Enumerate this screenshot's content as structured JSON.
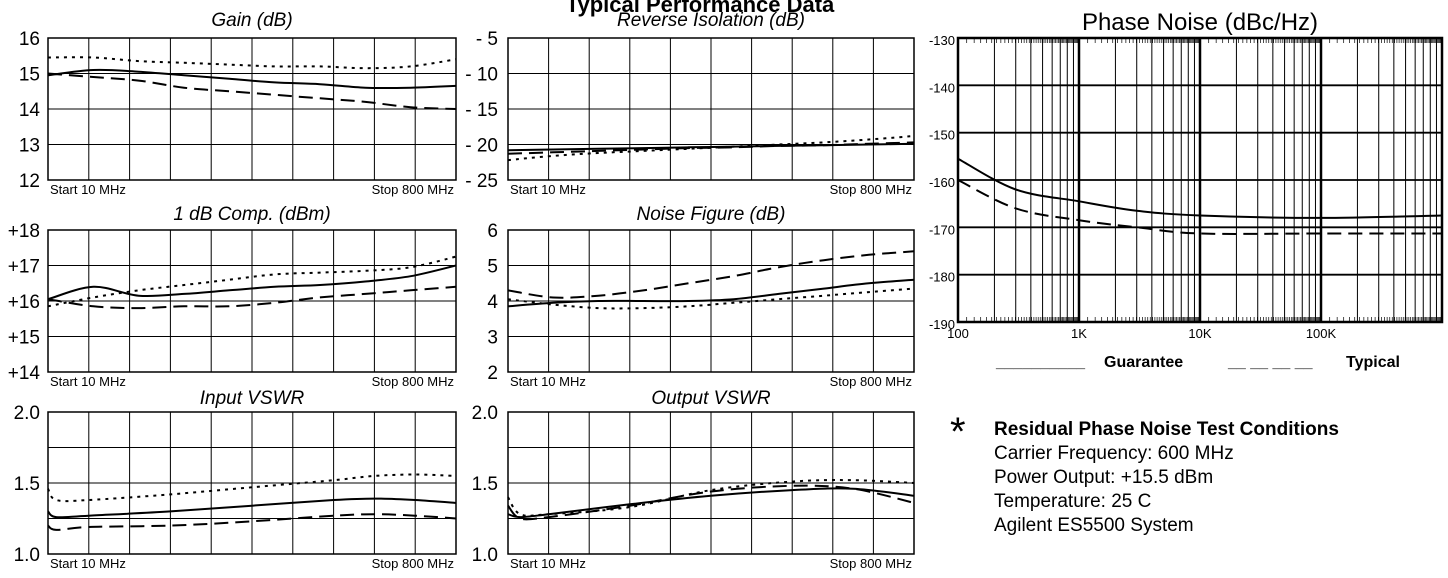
{
  "page_title": "Typical Performance Data",
  "chart_data": [
    {
      "id": "gain",
      "type": "line",
      "title": "Gain (dB)",
      "title_italic": true,
      "ylim": [
        12,
        16
      ],
      "yticks": [
        16,
        15,
        14,
        13,
        12
      ],
      "ytick_prefix": "",
      "ytick_side": "left",
      "start_label": "Start  10  MHz",
      "stop_label": "Stop  800 MHz",
      "series": [
        {
          "style": "solid",
          "values": [
            14.95,
            15.1,
            15.05,
            14.95,
            14.85,
            14.75,
            14.7,
            14.6,
            14.6,
            14.65
          ]
        },
        {
          "style": "dotted",
          "values": [
            15.45,
            15.45,
            15.35,
            15.3,
            15.25,
            15.2,
            15.2,
            15.15,
            15.2,
            15.4
          ]
        },
        {
          "style": "dashed",
          "values": [
            15.0,
            14.9,
            14.8,
            14.6,
            14.5,
            14.4,
            14.3,
            14.2,
            14.05,
            14.0
          ]
        }
      ]
    },
    {
      "id": "reverse-isolation",
      "type": "line",
      "title": "Reverse Isolation (dB)",
      "title_italic": true,
      "ylim": [
        -25,
        -5
      ],
      "yticks": [
        "- 5",
        "- 10",
        "- 15",
        "- 20",
        "- 25"
      ],
      "ytick_side": "left",
      "start_label": "Start  10  MHz",
      "stop_label": "Stop  800 MHz",
      "series": [
        {
          "style": "solid",
          "values": [
            -20.8,
            -20.7,
            -20.6,
            -20.5,
            -20.4,
            -20.3,
            -20.2,
            -20.1,
            -20.0,
            -19.9
          ]
        },
        {
          "style": "dotted",
          "values": [
            -22.2,
            -21.6,
            -21.2,
            -20.9,
            -20.6,
            -20.3,
            -20.0,
            -19.7,
            -19.3,
            -18.8
          ]
        },
        {
          "style": "dashed",
          "values": [
            -21.3,
            -21.1,
            -20.9,
            -20.7,
            -20.5,
            -20.4,
            -20.2,
            -20.1,
            -19.9,
            -19.7
          ]
        }
      ]
    },
    {
      "id": "phase-noise",
      "type": "line",
      "title": "Phase Noise (dBc/Hz)",
      "title_italic": false,
      "ylim": [
        -190,
        -130
      ],
      "yticks": [
        -130,
        -140,
        -150,
        -160,
        -170,
        -180,
        -190
      ],
      "ytick_side": "left",
      "x_scale": "log",
      "xlim": [
        100,
        1000000
      ],
      "xticks": [
        "100",
        "1K",
        "10K",
        "100K"
      ],
      "series": [
        {
          "name": "Guarantee",
          "style": "solid",
          "x": [
            100,
            300,
            1000,
            3000,
            10000,
            100000,
            1000000
          ],
          "y": [
            -155.5,
            -162,
            -164.5,
            -166.5,
            -167.5,
            -168,
            -167.5
          ]
        },
        {
          "name": "Typical",
          "style": "dashed",
          "x": [
            100,
            300,
            1000,
            3000,
            10000,
            100000,
            1000000
          ],
          "y": [
            -160,
            -166,
            -168.5,
            -170,
            -171.3,
            -171.3,
            -171.3
          ]
        }
      ]
    },
    {
      "id": "comp-1db",
      "type": "line",
      "title": "1 dB Comp. (dBm)",
      "title_italic": true,
      "ylim": [
        14,
        18
      ],
      "yticks": [
        "+18",
        "+17",
        "+16",
        "+15",
        "+14"
      ],
      "ytick_side": "left",
      "start_label": "Start  10  MHz",
      "stop_label": "Stop  800 MHz",
      "series": [
        {
          "style": "solid",
          "values": [
            16.05,
            16.4,
            16.15,
            16.2,
            16.3,
            16.4,
            16.45,
            16.55,
            16.7,
            17.0
          ]
        },
        {
          "style": "dotted",
          "values": [
            15.85,
            16.1,
            16.3,
            16.45,
            16.6,
            16.75,
            16.8,
            16.85,
            16.95,
            17.25
          ]
        },
        {
          "style": "dashed",
          "values": [
            16.05,
            15.85,
            15.8,
            15.85,
            15.85,
            15.95,
            16.1,
            16.2,
            16.3,
            16.4
          ]
        }
      ]
    },
    {
      "id": "noise-figure",
      "type": "line",
      "title": "Noise Figure (dB)",
      "title_italic": true,
      "ylim": [
        2,
        6
      ],
      "yticks": [
        6,
        5,
        4,
        3,
        2
      ],
      "ytick_side": "left",
      "start_label": "Start  10  MHz",
      "stop_label": "Stop  800 MHz",
      "series": [
        {
          "style": "solid",
          "values": [
            3.85,
            3.95,
            4.0,
            4.0,
            4.0,
            4.05,
            4.2,
            4.35,
            4.5,
            4.6
          ]
        },
        {
          "style": "dotted",
          "values": [
            4.05,
            3.9,
            3.8,
            3.8,
            3.85,
            3.95,
            4.05,
            4.15,
            4.25,
            4.35
          ]
        },
        {
          "style": "dashed",
          "values": [
            4.3,
            4.1,
            4.15,
            4.3,
            4.5,
            4.7,
            4.95,
            5.15,
            5.3,
            5.4
          ]
        }
      ]
    },
    {
      "id": "input-vswr",
      "type": "line",
      "title": "Input VSWR",
      "title_italic": true,
      "ylim": [
        1.0,
        2.0
      ],
      "yticks": [
        "2.0",
        "1.5",
        "1.0"
      ],
      "ygrid_steps": 4,
      "ytick_side": "left",
      "start_label": "Start  10  MHz",
      "stop_label": "Stop  800 MHz",
      "series": [
        {
          "style": "solid",
          "x": [
            0,
            0.02,
            0.1,
            0.3,
            0.5,
            0.7,
            0.8,
            0.9,
            1.0
          ],
          "values": [
            1.3,
            1.26,
            1.27,
            1.3,
            1.34,
            1.38,
            1.39,
            1.38,
            1.36
          ]
        },
        {
          "style": "dotted",
          "x": [
            0,
            0.02,
            0.1,
            0.3,
            0.5,
            0.7,
            0.8,
            0.9,
            1.0
          ],
          "values": [
            1.46,
            1.38,
            1.38,
            1.42,
            1.47,
            1.52,
            1.55,
            1.56,
            1.55
          ]
        },
        {
          "style": "dashed",
          "x": [
            0,
            0.02,
            0.1,
            0.3,
            0.5,
            0.7,
            0.8,
            0.9,
            1.0
          ],
          "values": [
            1.2,
            1.17,
            1.19,
            1.2,
            1.23,
            1.27,
            1.28,
            1.27,
            1.25
          ]
        }
      ]
    },
    {
      "id": "output-vswr",
      "type": "line",
      "title": "Output VSWR",
      "title_italic": true,
      "ylim": [
        1.0,
        2.0
      ],
      "yticks": [
        "2.0",
        "1.5",
        "1.0"
      ],
      "ygrid_steps": 4,
      "ytick_side": "left",
      "start_label": "Start  10  MHz",
      "stop_label": "Stop  800 MHz",
      "series": [
        {
          "style": "solid",
          "x": [
            0,
            0.03,
            0.1,
            0.3,
            0.5,
            0.7,
            0.85,
            1.0
          ],
          "values": [
            1.28,
            1.26,
            1.28,
            1.35,
            1.41,
            1.45,
            1.46,
            1.41
          ]
        },
        {
          "style": "dotted",
          "x": [
            0,
            0.03,
            0.1,
            0.3,
            0.5,
            0.7,
            0.85,
            1.0
          ],
          "values": [
            1.4,
            1.28,
            1.28,
            1.33,
            1.45,
            1.51,
            1.52,
            1.5
          ]
        },
        {
          "style": "dashed",
          "x": [
            0,
            0.03,
            0.1,
            0.3,
            0.5,
            0.7,
            0.85,
            1.0
          ],
          "values": [
            1.34,
            1.25,
            1.26,
            1.34,
            1.44,
            1.48,
            1.46,
            1.36
          ]
        }
      ]
    }
  ],
  "legend": {
    "guarantee_line": "__________",
    "guarantee_label": "Guarantee",
    "typical_line": "__ __ __ __",
    "typical_label": "Typical"
  },
  "conditions": {
    "star": "*",
    "heading": "Residual Phase Noise Test Conditions",
    "lines": [
      "Carrier Frequency: 600 MHz",
      "Power Output: +15.5 dBm",
      "Temperature: 25 C",
      "Agilent ES5500 System"
    ]
  }
}
